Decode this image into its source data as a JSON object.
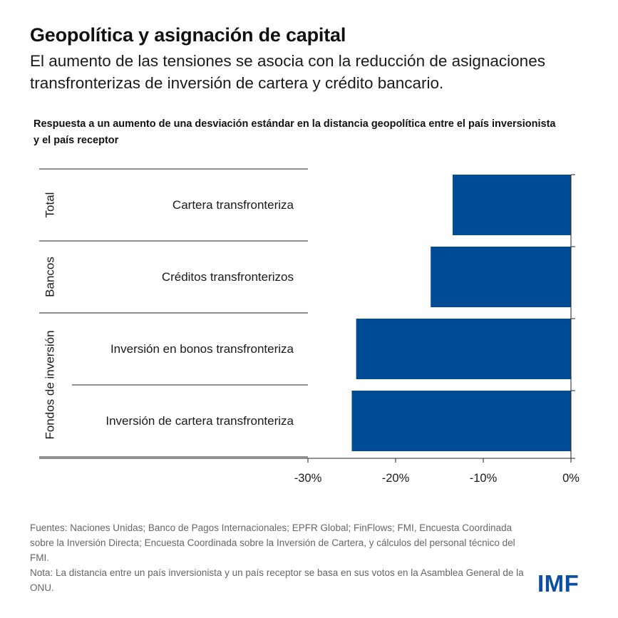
{
  "header": {
    "title": "Geopolítica y asignación de capital",
    "subtitle": "El aumento de las tensiones se asocia con la reducción de asignaciones transfronterizas de inversión de cartera y crédito bancario."
  },
  "chart_data": {
    "type": "bar",
    "orientation": "horizontal",
    "title": "Respuesta a un aumento de una desviación estándar en la distancia geopolítica entre el país inversionista y el país receptor",
    "groups": [
      {
        "name": "Total",
        "categories": [
          "Cartera transfronteriza"
        ]
      },
      {
        "name": "Bancos",
        "categories": [
          "Créditos transfronterizos"
        ]
      },
      {
        "name": "Fondos de inversión",
        "categories": [
          "Inversión en bonos transfronteriza",
          "Inversión de cartera transfronteriza"
        ]
      }
    ],
    "categories": [
      "Cartera transfronteriza",
      "Créditos transfronterizos",
      "Inversión en bonos transfronteriza",
      "Inversión de cartera transfronteriza"
    ],
    "values": [
      -13.5,
      -16.0,
      -24.5,
      -25.0
    ],
    "unit": "%",
    "xlim": [
      -30,
      0
    ],
    "xticks": [
      -30,
      -20,
      -10,
      0
    ],
    "xtick_labels": [
      "-30%",
      "-20%",
      "-10%",
      "0%"
    ],
    "bar_color": "#004b96",
    "grid": false
  },
  "footer": {
    "sources": "Fuentes: Naciones Unidas; Banco de Pagos Internacionales; EPFR Global; FinFlows; FMI, Encuesta Coordinada sobre la Inversión Directa; Encuesta Coordinada sobre la Inversión de Cartera, y cálculos del personal técnico del FMI.",
    "note": "Nota: La distancia entre un país inversionista y un país receptor se basa en sus votos en la Asamblea General de la ONU.",
    "logo": "IMF"
  },
  "colors": {
    "brand": "#0b4ea2",
    "bar": "#004b96",
    "text": "#1a1a1a",
    "notes": "#666666"
  }
}
